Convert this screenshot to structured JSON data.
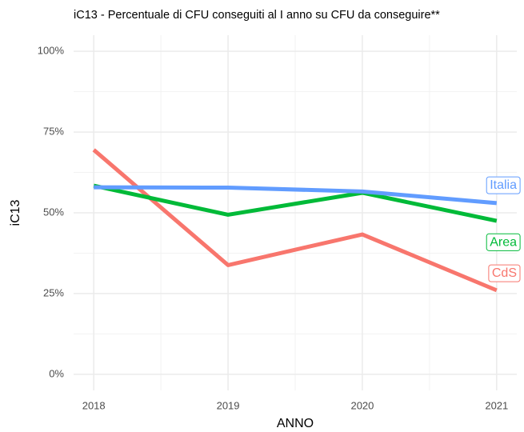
{
  "chart_data": {
    "type": "line",
    "title": "iC13 - Percentuale di CFU conseguiti al I anno su CFU da conseguire**",
    "x_label": "ANNO",
    "y_label": "iC13",
    "x": [
      2018,
      2019,
      2020,
      2021
    ],
    "series": [
      {
        "name": "CdS",
        "color": "#F8766D",
        "values": [
          69.5,
          33.8,
          43.3,
          26
        ]
      },
      {
        "name": "Area",
        "color": "#00BA38",
        "values": [
          58.4,
          49.4,
          56.2,
          47.5
        ]
      },
      {
        "name": "Italia",
        "color": "#619CFF",
        "values": [
          57.9,
          57.8,
          56.6,
          53
        ]
      }
    ],
    "xlim": [
      2017.85,
      2021.15
    ],
    "xticks": [
      2018,
      2019,
      2020,
      2021
    ],
    "xminor": [
      2018.5,
      2019.5,
      2020.5
    ],
    "ylim": [
      -5,
      105
    ],
    "yticks": [
      {
        "value": 0,
        "label": "0%"
      },
      {
        "value": 25,
        "label": "25%"
      },
      {
        "value": 50,
        "label": "50%"
      },
      {
        "value": 75,
        "label": "75%"
      },
      {
        "value": 100,
        "label": "100%"
      }
    ],
    "yminor": [
      12.5,
      37.5,
      62.5,
      87.5
    ],
    "grid": true
  }
}
